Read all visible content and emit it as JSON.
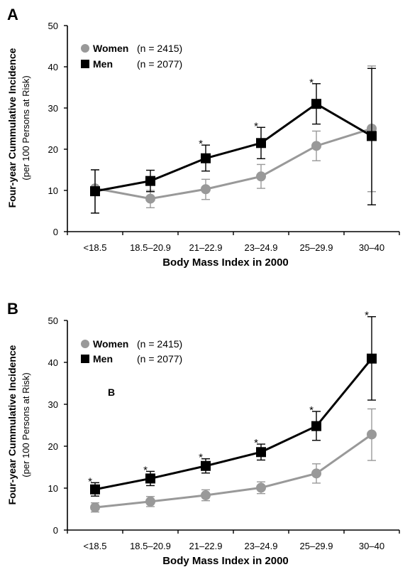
{
  "chart_data": [
    {
      "type": "line",
      "panel": "A",
      "categories": [
        "<18.5",
        "18.5–20.9",
        "21–22.9",
        "23–24.9",
        "25–29.9",
        "30–40"
      ],
      "xlabel": "Body Mass Index in 2000",
      "ylabel": "Four-year Cummulative Incidence",
      "ylabel_sub": "(per 100 Persons at Risk)",
      "ylim": [
        0,
        50
      ],
      "yticks": [
        0,
        10,
        20,
        30,
        40,
        50
      ],
      "grid": false,
      "legend_position": "top-left",
      "series": [
        {
          "name": "Women",
          "n_label": "(n = 2415)",
          "color": "#999999",
          "marker": "circle",
          "values": [
            10.5,
            8.0,
            10.3,
            13.4,
            20.8,
            25.0
          ],
          "err_low": [
            4.5,
            5.8,
            7.8,
            10.5,
            17.2,
            9.7
          ],
          "err_high": [
            15.0,
            10.0,
            12.7,
            16.3,
            24.4,
            40.2
          ],
          "significant": [
            false,
            false,
            false,
            false,
            false,
            false
          ]
        },
        {
          "name": "Men",
          "n_label": "(n = 2077)",
          "color": "#000000",
          "marker": "square",
          "values": [
            9.8,
            12.3,
            17.8,
            21.5,
            31.0,
            23.2
          ],
          "err_low": [
            4.5,
            9.7,
            14.7,
            17.7,
            26.1,
            6.5
          ],
          "err_high": [
            15.0,
            14.9,
            21.0,
            25.3,
            35.9,
            39.6
          ],
          "significant": [
            false,
            false,
            true,
            true,
            true,
            false
          ]
        }
      ]
    },
    {
      "type": "line",
      "panel": "B",
      "inset_label": "B",
      "categories": [
        "<18.5",
        "18.5–20.9",
        "21–22.9",
        "23–24.9",
        "25–29.9",
        "30–40"
      ],
      "xlabel": "Body Mass Index in 2000",
      "ylabel": "Four-year Cummulative Incidence",
      "ylabel_sub": "(per 100 Persons at Risk)",
      "ylim": [
        0,
        50
      ],
      "yticks": [
        0,
        10,
        20,
        30,
        40,
        50
      ],
      "grid": false,
      "legend_position": "top-left",
      "series": [
        {
          "name": "Women",
          "n_label": "(n = 2415)",
          "color": "#999999",
          "marker": "circle",
          "values": [
            5.4,
            6.8,
            8.3,
            10.1,
            13.5,
            22.8
          ],
          "err_low": [
            4.3,
            5.6,
            7.0,
            8.7,
            11.2,
            16.6
          ],
          "err_high": [
            6.5,
            8.0,
            9.6,
            11.5,
            15.8,
            28.9
          ],
          "significant": [
            false,
            false,
            false,
            false,
            false,
            false
          ]
        },
        {
          "name": "Men",
          "n_label": "(n = 2077)",
          "color": "#000000",
          "marker": "square",
          "values": [
            9.7,
            12.3,
            15.3,
            18.6,
            24.8,
            40.9
          ],
          "err_low": [
            8.1,
            10.6,
            13.6,
            16.7,
            21.4,
            31.0
          ],
          "err_high": [
            11.3,
            14.0,
            17.0,
            20.5,
            28.3,
            50.9
          ],
          "significant": [
            true,
            true,
            true,
            true,
            true,
            true
          ]
        }
      ]
    }
  ]
}
